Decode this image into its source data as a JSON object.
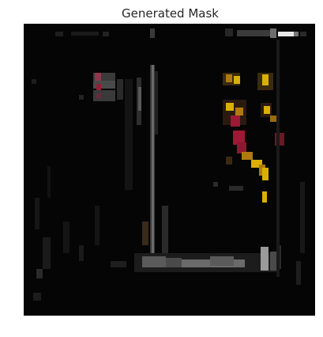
{
  "figure": {
    "title": "Generated Mask"
  },
  "mask": {
    "background_color": "#050505",
    "palette": {
      "gray_low": "#2a2a2a",
      "gray_mid": "#5a5a5a",
      "gray_high": "#9a9a9a",
      "white": "#e8e8e8",
      "yellow": "#d9b000",
      "orange": "#b07a10",
      "red": "#9c1a35",
      "pink": "#8a3a4a"
    }
  }
}
